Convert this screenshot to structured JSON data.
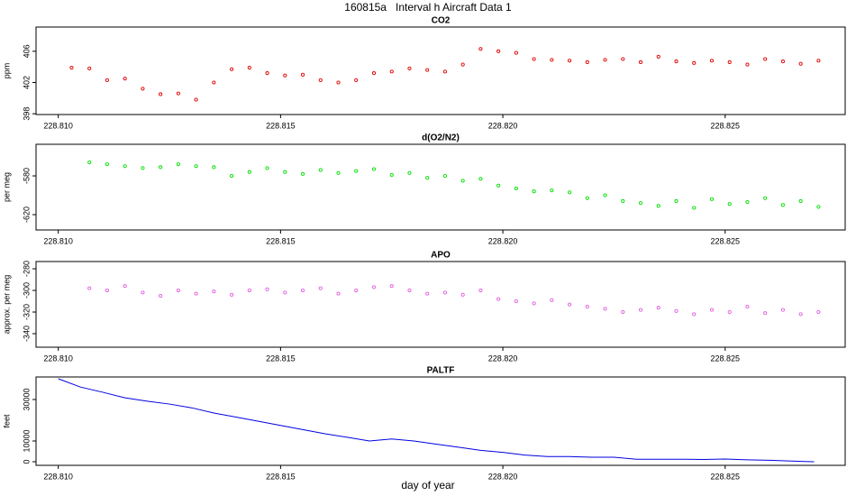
{
  "title": "160815a   Interval h Aircraft Data 1",
  "xlabel": "day of year",
  "chart_data": [
    {
      "type": "scatter",
      "title": "CO2",
      "ylabel": "ppm",
      "color": "#e00000",
      "xlim": [
        228.8095,
        228.8277
      ],
      "ylim": [
        397.9,
        409.1
      ],
      "xticks": [
        {
          "value": 228.81,
          "label": "228.810"
        },
        228.815,
        {
          "value": 228.82,
          "label": "228.820"
        },
        228.825
      ],
      "yticks": [
        398,
        402,
        406
      ],
      "x": [
        228.8103,
        228.8107,
        228.8111,
        228.8115,
        228.8119,
        228.8123,
        228.8127,
        228.8131,
        228.8135,
        228.8139,
        228.8143,
        228.8147,
        228.8151,
        228.8155,
        228.8159,
        228.8163,
        228.8167,
        228.8171,
        228.8175,
        228.8179,
        228.8183,
        228.8187,
        228.8191,
        228.8195,
        228.8199,
        228.8203,
        228.8207,
        228.8211,
        228.8215,
        228.8219,
        228.8223,
        228.8227,
        228.8231,
        228.8235,
        228.8239,
        228.8243,
        228.8247,
        228.8251,
        228.8255,
        228.8259,
        228.8263,
        228.8267,
        228.8271
      ],
      "values": [
        403.9,
        403.8,
        402.3,
        402.5,
        401.2,
        400.5,
        400.6,
        399.8,
        402.0,
        403.7,
        403.9,
        403.2,
        402.9,
        403.0,
        402.3,
        402.0,
        402.3,
        403.2,
        403.4,
        403.8,
        403.6,
        403.4,
        404.3,
        406.3,
        406.0,
        405.8,
        405.0,
        404.9,
        404.8,
        404.6,
        404.9,
        405.0,
        404.6,
        405.3,
        404.7,
        404.5,
        404.8,
        404.6,
        404.3,
        405.0,
        404.7,
        404.4,
        404.8
      ]
    },
    {
      "type": "scatter",
      "title": "d(O2/N2)",
      "ylabel": "per meg",
      "color": "#00e000",
      "xlim": [
        228.8095,
        228.8277
      ],
      "ylim": [
        -635.8,
        -547.4
      ],
      "xticks": [
        {
          "value": 228.81,
          "label": "228.810"
        },
        228.815,
        {
          "value": 228.82,
          "label": "228.820"
        },
        228.825
      ],
      "yticks": [
        -580,
        -620
      ],
      "x": [
        228.8107,
        228.8111,
        228.8115,
        228.8119,
        228.8123,
        228.8127,
        228.8131,
        228.8135,
        228.8139,
        228.8143,
        228.8147,
        228.8151,
        228.8155,
        228.8159,
        228.8163,
        228.8167,
        228.8171,
        228.8175,
        228.8179,
        228.8183,
        228.8187,
        228.8191,
        228.8195,
        228.8199,
        228.8203,
        228.8207,
        228.8211,
        228.8215,
        228.8219,
        228.8223,
        228.8227,
        228.8231,
        228.8235,
        228.8239,
        228.8243,
        228.8247,
        228.8251,
        228.8255,
        228.8259,
        228.8263,
        228.8267,
        228.8271
      ],
      "values": [
        -566,
        -568,
        -570,
        -572,
        -571,
        -568,
        -570,
        -571,
        -580,
        -576,
        -572,
        -576,
        -578,
        -574,
        -577,
        -575,
        -573,
        -579,
        -577,
        -582,
        -580,
        -585,
        -583,
        -590,
        -593,
        -596,
        -595,
        -597,
        -603,
        -600,
        -606,
        -608,
        -611,
        -606,
        -613,
        -604,
        -609,
        -607,
        -603,
        -610,
        -606,
        -612
      ]
    },
    {
      "type": "scatter",
      "title": "APO",
      "ylabel": "approx. per meg",
      "color": "#e060e0",
      "xlim": [
        228.8095,
        228.8277
      ],
      "ylim": [
        -352.5,
        -273.3
      ],
      "xticks": [
        {
          "value": 228.81,
          "label": "228.810"
        },
        228.815,
        {
          "value": 228.82,
          "label": "228.820"
        },
        228.825
      ],
      "yticks": [
        -280,
        -300,
        -320,
        -340
      ],
      "x": [
        228.8107,
        228.8111,
        228.8115,
        228.8119,
        228.8123,
        228.8127,
        228.8131,
        228.8135,
        228.8139,
        228.8143,
        228.8147,
        228.8151,
        228.8155,
        228.8159,
        228.8163,
        228.8167,
        228.8171,
        228.8175,
        228.8179,
        228.8183,
        228.8187,
        228.8191,
        228.8195,
        228.8199,
        228.8203,
        228.8207,
        228.8211,
        228.8215,
        228.8219,
        228.8223,
        228.8227,
        228.8231,
        228.8235,
        228.8239,
        228.8243,
        228.8247,
        228.8251,
        228.8255,
        228.8259,
        228.8263,
        228.8267,
        228.8271
      ],
      "values": [
        -298,
        -300,
        -296,
        -302,
        -305,
        -300,
        -303,
        -301,
        -304,
        -300,
        -299,
        -302,
        -300,
        -298,
        -303,
        -300,
        -297,
        -296,
        -300,
        -303,
        -302,
        -304,
        -300,
        -308,
        -310,
        -312,
        -309,
        -313,
        -315,
        -317,
        -320,
        -318,
        -316,
        -319,
        -322,
        -318,
        -320,
        -315,
        -321,
        -318,
        -322,
        -320
      ]
    },
    {
      "type": "line",
      "title": "PALTF",
      "ylabel": "feet",
      "color": "#0000e0",
      "xlim": [
        228.8095,
        228.8277
      ],
      "ylim": [
        -1740,
        40870
      ],
      "xticks": [
        {
          "value": 228.81,
          "label": "228.810"
        },
        228.815,
        {
          "value": 228.82,
          "label": "228.820"
        },
        228.825
      ],
      "yticks": [
        0,
        10000,
        30000
      ],
      "x": [
        228.81,
        228.8105,
        228.811,
        228.8115,
        228.812,
        228.8125,
        228.813,
        228.8135,
        228.814,
        228.8145,
        228.815,
        228.8155,
        228.816,
        228.8165,
        228.817,
        228.8175,
        228.818,
        228.8185,
        228.819,
        228.8195,
        228.82,
        228.8205,
        228.821,
        228.8215,
        228.822,
        228.8225,
        228.823,
        228.8235,
        228.824,
        228.8245,
        228.825,
        228.8255,
        228.826,
        228.8265,
        228.827
      ],
      "values": [
        40000,
        36000,
        33500,
        30800,
        29200,
        27800,
        26000,
        23500,
        21500,
        19500,
        17500,
        15500,
        13500,
        11800,
        10000,
        11000,
        10000,
        8500,
        7000,
        5500,
        4500,
        3200,
        2500,
        2500,
        2200,
        2200,
        1200,
        1200,
        1200,
        1100,
        1300,
        900,
        700,
        300,
        0
      ]
    }
  ]
}
